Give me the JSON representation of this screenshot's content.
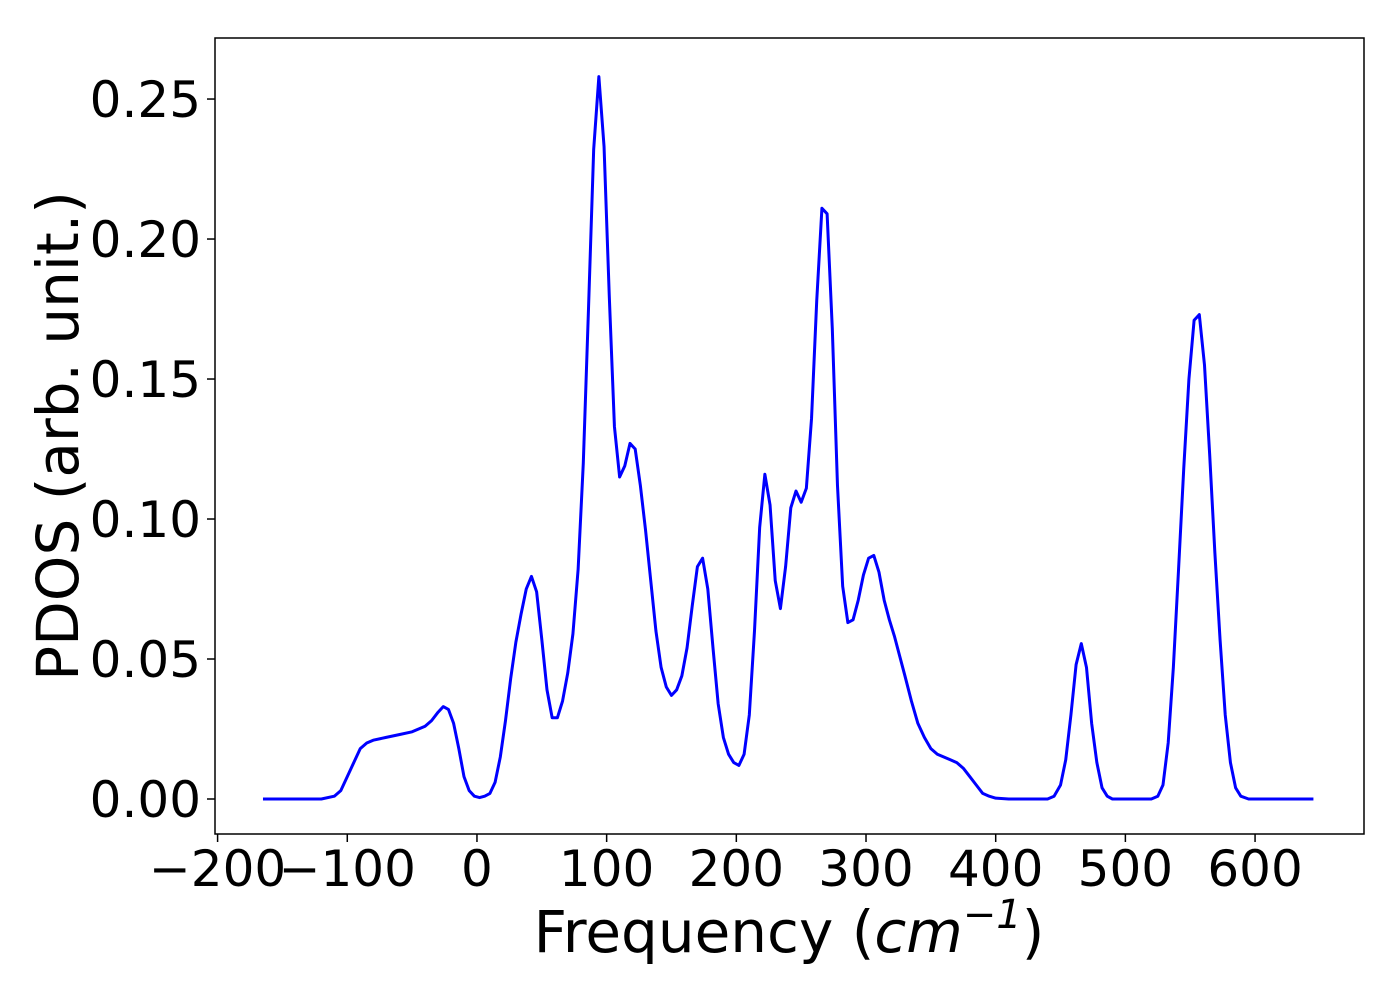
{
  "chart_data": {
    "type": "line",
    "xlabel": [
      "Frequency (",
      "cm",
      "−1",
      ")"
    ],
    "ylabel": "PDOS (arb. unit.)",
    "xlim": [
      -202,
      684
    ],
    "ylim": [
      -0.0125,
      0.2718
    ],
    "xticks": [
      {
        "value": -200,
        "label": "−200"
      },
      {
        "value": -100,
        "label": "−100"
      },
      0,
      100,
      200,
      300,
      400,
      500,
      600
    ],
    "yticks": [
      {
        "value": 0,
        "label": "0.00"
      },
      {
        "value": 0.05,
        "label": "0.05"
      },
      {
        "value": 0.1,
        "label": "0.10"
      },
      {
        "value": 0.15,
        "label": "0.15"
      },
      {
        "value": 0.2,
        "label": "0.20"
      },
      {
        "value": 0.25,
        "label": "0.25"
      }
    ],
    "grid": false,
    "x": [
      -165,
      -120,
      -110,
      -105,
      -100,
      -95,
      -90,
      -85,
      -80,
      -70,
      -60,
      -50,
      -40,
      -35,
      -30,
      -26,
      -22,
      -18,
      -14,
      -10,
      -6,
      -2,
      2,
      6,
      10,
      14,
      18,
      22,
      26,
      30,
      34,
      38,
      42,
      46,
      50,
      54,
      58,
      62,
      66,
      70,
      74,
      78,
      82,
      86,
      90,
      94,
      98,
      102,
      106,
      110,
      114,
      118,
      122,
      126,
      130,
      134,
      138,
      142,
      146,
      150,
      154,
      158,
      162,
      166,
      170,
      174,
      178,
      182,
      186,
      190,
      194,
      198,
      202,
      206,
      210,
      214,
      218,
      222,
      226,
      230,
      234,
      238,
      242,
      246,
      250,
      254,
      258,
      262,
      266,
      270,
      274,
      278,
      282,
      286,
      290,
      294,
      298,
      302,
      306,
      310,
      314,
      318,
      322,
      326,
      330,
      335,
      340,
      345,
      350,
      355,
      360,
      365,
      370,
      375,
      380,
      385,
      390,
      395,
      400,
      410,
      440,
      445,
      450,
      454,
      458,
      462,
      466,
      470,
      474,
      478,
      482,
      486,
      490,
      520,
      525,
      529,
      533,
      537,
      541,
      545,
      549,
      553,
      557,
      561,
      565,
      569,
      573,
      577,
      581,
      585,
      589,
      595,
      645
    ],
    "series": [
      {
        "name": "PDOS",
        "color": "#0000ff",
        "values": [
          0,
          0,
          0.001,
          0.003,
          0.008,
          0.013,
          0.018,
          0.02,
          0.021,
          0.022,
          0.023,
          0.024,
          0.026,
          0.028,
          0.031,
          0.033,
          0.032,
          0.027,
          0.018,
          0.008,
          0.003,
          0.001,
          0.0005,
          0.001,
          0.002,
          0.006,
          0.015,
          0.028,
          0.043,
          0.056,
          0.066,
          0.075,
          0.0795,
          0.074,
          0.057,
          0.039,
          0.029,
          0.029,
          0.035,
          0.045,
          0.059,
          0.082,
          0.12,
          0.175,
          0.232,
          0.258,
          0.233,
          0.18,
          0.133,
          0.115,
          0.119,
          0.127,
          0.125,
          0.112,
          0.096,
          0.078,
          0.06,
          0.047,
          0.04,
          0.037,
          0.039,
          0.044,
          0.054,
          0.069,
          0.083,
          0.086,
          0.075,
          0.054,
          0.034,
          0.022,
          0.016,
          0.013,
          0.012,
          0.016,
          0.03,
          0.06,
          0.097,
          0.116,
          0.105,
          0.078,
          0.068,
          0.083,
          0.104,
          0.11,
          0.106,
          0.111,
          0.136,
          0.178,
          0.211,
          0.209,
          0.168,
          0.112,
          0.076,
          0.063,
          0.064,
          0.071,
          0.08,
          0.086,
          0.087,
          0.081,
          0.071,
          0.064,
          0.058,
          0.051,
          0.044,
          0.035,
          0.027,
          0.022,
          0.018,
          0.016,
          0.015,
          0.014,
          0.013,
          0.011,
          0.008,
          0.005,
          0.002,
          0.001,
          0.0003,
          0,
          0,
          0.001,
          0.005,
          0.014,
          0.03,
          0.048,
          0.0555,
          0.047,
          0.027,
          0.013,
          0.004,
          0.001,
          0,
          0,
          0.001,
          0.005,
          0.02,
          0.047,
          0.082,
          0.118,
          0.15,
          0.171,
          0.173,
          0.155,
          0.123,
          0.088,
          0.057,
          0.03,
          0.013,
          0.004,
          0.001,
          0,
          0
        ]
      }
    ]
  }
}
